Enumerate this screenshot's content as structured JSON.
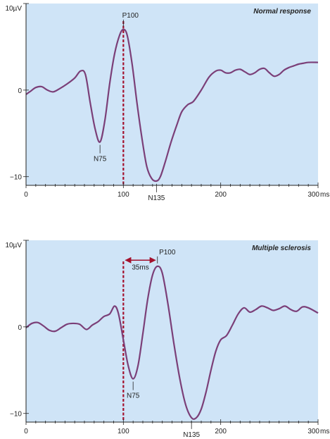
{
  "figure": {
    "colors": {
      "background": "#cfe4f7",
      "curve": "#7b3f78",
      "stimulus_line": "#a3102c",
      "axis": "#222222"
    }
  },
  "chart_data": [
    {
      "type": "line",
      "title": "Normal response",
      "x_unit": "ms",
      "y_unit": "µV",
      "xlim": [
        0,
        300
      ],
      "ylim": [
        -11,
        10
      ],
      "x_ticks": [
        0,
        100,
        200,
        300
      ],
      "x_tick_labels": [
        "0",
        "100",
        "200",
        "300"
      ],
      "y_ticks": [
        10,
        0,
        -10
      ],
      "y_tick_labels": [
        "10µV",
        "0",
        "−10"
      ],
      "grid": false,
      "stimulus_line_x": 100,
      "series": [
        {
          "x": [
            0,
            5,
            10,
            16,
            22,
            28,
            35,
            42,
            50,
            56,
            61,
            66,
            71,
            76,
            81,
            86,
            91,
            96,
            100,
            104,
            109,
            114,
            119,
            124,
            129,
            134,
            138,
            143,
            149,
            155,
            160,
            166,
            172,
            180,
            188,
            195,
            200,
            205,
            210,
            215,
            220,
            225,
            230,
            235,
            240,
            245,
            250,
            255,
            260,
            265,
            270,
            275,
            280,
            285,
            290,
            300
          ],
          "y": [
            -0.5,
            -0.1,
            0.3,
            0.4,
            0.0,
            -0.2,
            0.2,
            0.7,
            1.4,
            2.2,
            1.8,
            -1.5,
            -4.5,
            -6.0,
            -3.5,
            0.8,
            4.2,
            6.3,
            7.0,
            6.3,
            3.0,
            -1.5,
            -5.5,
            -8.8,
            -10.2,
            -10.5,
            -10.0,
            -8.3,
            -6.0,
            -4.0,
            -2.5,
            -1.7,
            -1.3,
            0.0,
            1.5,
            2.2,
            2.3,
            2.0,
            2.0,
            2.3,
            2.4,
            2.1,
            1.8,
            2.0,
            2.4,
            2.5,
            2.0,
            1.6,
            1.8,
            2.3,
            2.6,
            2.8,
            3.0,
            3.1,
            3.2,
            3.2
          ]
        }
      ],
      "annotations": [
        {
          "label": "P100",
          "x": 100,
          "y": 7.0
        },
        {
          "label": "N75",
          "x": 76,
          "y": -6.0
        },
        {
          "label": "N135",
          "x": 134,
          "y": -10.5
        }
      ]
    },
    {
      "type": "line",
      "title": "Multiple sclerosis",
      "x_unit": "ms",
      "y_unit": "µV",
      "xlim": [
        0,
        300
      ],
      "ylim": [
        -11,
        10
      ],
      "x_ticks": [
        0,
        100,
        200,
        300
      ],
      "x_tick_labels": [
        "0",
        "100",
        "200",
        "300"
      ],
      "y_ticks": [
        10,
        0,
        -10
      ],
      "y_tick_labels": [
        "10µV",
        "0",
        "−10"
      ],
      "grid": false,
      "stimulus_line_x": 100,
      "latency_delay": {
        "label": "35ms",
        "from_x": 100,
        "to_x": 135,
        "y": 7.7
      },
      "series": [
        {
          "x": [
            0,
            6,
            12,
            18,
            24,
            30,
            36,
            42,
            48,
            55,
            62,
            68,
            74,
            80,
            86,
            91,
            95,
            100,
            105,
            110,
            115,
            120,
            125,
            130,
            135,
            140,
            146,
            152,
            158,
            164,
            170,
            175,
            180,
            185,
            190,
            195,
            200,
            206,
            212,
            218,
            224,
            230,
            236,
            242,
            248,
            254,
            260,
            266,
            272,
            278,
            284,
            290,
            300
          ],
          "y": [
            -0.1,
            0.4,
            0.5,
            0.1,
            -0.4,
            -0.5,
            -0.1,
            0.3,
            0.4,
            0.3,
            -0.3,
            0.2,
            0.6,
            1.2,
            1.5,
            2.4,
            1.5,
            -1.5,
            -4.5,
            -6.0,
            -4.5,
            -0.8,
            3.2,
            6.0,
            7.0,
            6.2,
            2.5,
            -2.0,
            -6.0,
            -9.0,
            -10.5,
            -10.5,
            -9.5,
            -7.5,
            -5.0,
            -2.8,
            -1.5,
            -1.0,
            0.2,
            1.5,
            2.2,
            1.7,
            2.0,
            2.4,
            2.2,
            1.9,
            2.1,
            2.4,
            2.0,
            1.8,
            2.3,
            2.2,
            1.6
          ]
        }
      ],
      "annotations": [
        {
          "label": "P100",
          "x": 135,
          "y": 7.0
        },
        {
          "label": "N75",
          "x": 110,
          "y": -6.0
        },
        {
          "label": "N135",
          "x": 170,
          "y": -10.5
        }
      ]
    }
  ]
}
